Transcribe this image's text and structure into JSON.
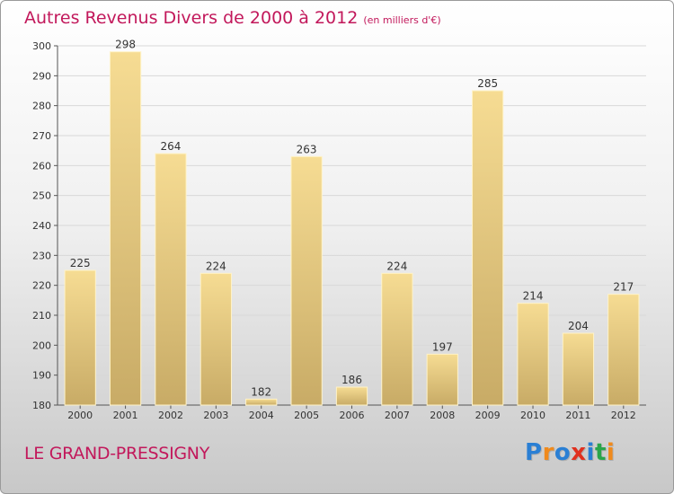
{
  "header": {
    "title": "Autres Revenus Divers de 2000 à 2012",
    "unit": "(en milliers d'€)"
  },
  "footer": {
    "place": "LE GRAND-PRESSIGNY",
    "logo": "Proxiti"
  },
  "colors": {
    "title": "#c2185b",
    "bar_light": "#f6dc93",
    "bar_dark": "#c8ab66",
    "grid": "#d8d8d8",
    "logo": [
      "#2a7fd4",
      "#f08a1c",
      "#2a7fd4",
      "#e0301e",
      "#2a7fd4",
      "#2aa54a",
      "#f08a1c"
    ]
  },
  "chart_data": {
    "type": "bar",
    "title": "Autres Revenus Divers de 2000 à 2012",
    "xlabel": "",
    "ylabel": "",
    "categories": [
      "2000",
      "2001",
      "2002",
      "2003",
      "2004",
      "2005",
      "2006",
      "2007",
      "2008",
      "2009",
      "2010",
      "2011",
      "2012"
    ],
    "values": [
      225,
      298,
      264,
      224,
      182,
      263,
      186,
      224,
      197,
      285,
      214,
      204,
      217
    ],
    "ylim": [
      180,
      300
    ],
    "yticks": [
      180,
      190,
      200,
      210,
      220,
      230,
      240,
      250,
      260,
      270,
      280,
      290,
      300
    ],
    "grid": true
  }
}
